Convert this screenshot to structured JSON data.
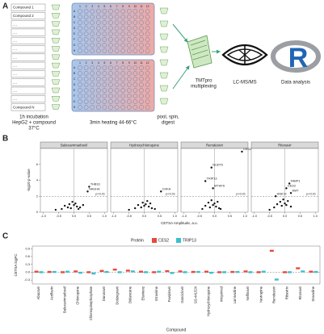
{
  "panel_a": {
    "label": "A",
    "compounds": [
      "Compound 1",
      "Compound 2",
      "....",
      "....",
      "....",
      "....",
      "....",
      "....",
      "....",
      "....",
      "....",
      "....",
      "Compound N"
    ],
    "plate": {
      "rows": [
        "A",
        "B",
        "C",
        "D",
        "E",
        "F",
        "G",
        "H"
      ],
      "columns": [
        "1",
        "2",
        "3",
        "4",
        "5",
        "6",
        "7",
        "8",
        "9",
        "10",
        "11",
        "12"
      ]
    },
    "incubation": [
      "1h incubation",
      "HepG2 + compound",
      "37°C"
    ],
    "heating": "3min heating 44-66°C",
    "pool": [
      "pool, spin,",
      "digest"
    ],
    "tmt": [
      "TMTpro",
      "multiplexing"
    ],
    "lcms": "LC-MS/MS",
    "r_logo": "R",
    "analysis": "Data analysis"
  },
  "chart_data": [
    {
      "type": "scatter",
      "panel_label": "B",
      "x_label": "CETSA Amplitude, a.u.",
      "y_label": "-log10 p-value",
      "xlim": [
        -1.1,
        1.1
      ],
      "xticks": [
        {
          "value": -1,
          "label": "-1.0"
        },
        -0.5,
        {
          "value": 0,
          "label": "0.0"
        },
        0.5,
        {
          "value": 1,
          "label": "1.0"
        }
      ],
      "ylim": [
        0,
        8
      ],
      "yticks": [
        0,
        2,
        4,
        6
      ],
      "threshold": {
        "value": 2,
        "label": "p<0.01"
      },
      "color": "#111111",
      "facets": [
        {
          "title": "Baloxavirmarboxil",
          "x": [
            -0.6,
            -0.4,
            -0.3,
            -0.2,
            -0.15,
            -0.1,
            -0.05,
            0,
            0.05,
            0.1,
            0.15,
            0.2,
            0.3,
            0.45,
            0.5
          ],
          "y": [
            0.3,
            0.4,
            0.8,
            0.6,
            1.0,
            0.5,
            1.3,
            0.9,
            1.1,
            0.7,
            0.4,
            0.6,
            0.9,
            2.6,
            3.2
          ],
          "labels": [
            null,
            null,
            null,
            null,
            null,
            null,
            null,
            null,
            null,
            null,
            null,
            null,
            null,
            "NAGHA",
            "THBS1"
          ]
        },
        {
          "title": "Hydroxychloroquine",
          "x": [
            -0.5,
            -0.3,
            -0.2,
            -0.1,
            -0.05,
            0,
            0.05,
            0.1,
            0.15,
            0.2,
            0.25,
            0.35,
            0.55
          ],
          "y": [
            0.3,
            0.5,
            0.9,
            0.6,
            1.2,
            0.8,
            1.0,
            1.4,
            0.7,
            1.1,
            0.5,
            0.4,
            2.6
          ],
          "labels": [
            null,
            null,
            null,
            null,
            null,
            null,
            null,
            null,
            null,
            null,
            null,
            null,
            "CHKA"
          ]
        },
        {
          "title": "Remdesivir",
          "x": [
            -0.4,
            -0.3,
            -0.2,
            -0.15,
            -0.1,
            -0.05,
            0,
            0.05,
            0.1,
            0.15,
            0.2,
            -0.3,
            -0.1,
            -0.05,
            0.9
          ],
          "y": [
            0.4,
            0.8,
            1.2,
            0.6,
            1.5,
            0.9,
            1.1,
            0.7,
            1.3,
            0.5,
            0.4,
            3.9,
            5.6,
            3.0,
            7.6
          ],
          "labels": [
            null,
            null,
            null,
            null,
            null,
            null,
            null,
            null,
            null,
            null,
            null,
            "TRIP13",
            "NUDT5",
            "MTHFS",
            "CES2"
          ]
        },
        {
          "title": "Ritonavir",
          "x": [
            -0.5,
            -0.35,
            -0.25,
            -0.15,
            -0.1,
            -0.05,
            0,
            0.05,
            0.1,
            0.2,
            -0.3,
            0.05,
            0.15,
            0.2
          ],
          "y": [
            0.3,
            0.6,
            1.0,
            1.3,
            0.8,
            1.6,
            1.1,
            0.9,
            1.4,
            0.7,
            2.0,
            3.0,
            3.6,
            2.4
          ],
          "labels": [
            null,
            null,
            null,
            null,
            null,
            null,
            null,
            null,
            null,
            null,
            "HIBCH",
            "CES3",
            "FABP1",
            "AMT"
          ]
        }
      ]
    },
    {
      "type": "box",
      "panel_label": "C",
      "legend_title": "Protein",
      "x_label": "Compound",
      "y_label": "CETSA logFC",
      "categories": [
        "Abacavir",
        "Acriflavin",
        "Baloxavirmarboxil",
        "Chloroquine",
        "Chloroquinephosphate",
        "Darunavir",
        "Dolutegravir",
        "Didanosine",
        "Efavirenz",
        "Etravirine",
        "Favipiravir",
        "Ganciclovir",
        "GS-441524",
        "Hydroxychloroquine",
        "Imiquimod",
        "Lamivudine",
        "Nelfinavir",
        "Nevirapine",
        "Remdesivir",
        "Ribavirin",
        "Ritonavir",
        "Stavudine"
      ],
      "ylim": [
        -0.45,
        1.0
      ],
      "yticks": [
        -0.3,
        {
          "value": 0,
          "label": "0.0"
        },
        0.3,
        0.6,
        0.9
      ],
      "series": [
        {
          "name": "CES2",
          "color": "#e8473d",
          "values": [
            0.02,
            0.01,
            0.0,
            0.03,
            0.0,
            0.05,
            0.1,
            0.06,
            0.02,
            0.0,
            0.04,
            0.03,
            0.01,
            0.02,
            0.0,
            0.01,
            0.03,
            0.0,
            0.82,
            0.0,
            0.15,
            0.02
          ]
        },
        {
          "name": "TRIP13",
          "color": "#3bbfd0",
          "values": [
            0.0,
            0.01,
            0.02,
            -0.02,
            -0.05,
            0.01,
            0.0,
            0.03,
            0.0,
            0.02,
            -0.03,
            0.0,
            0.01,
            -0.02,
            0.0,
            0.01,
            0.0,
            0.02,
            -0.28,
            0.0,
            0.03,
            0.01
          ]
        }
      ]
    }
  ]
}
